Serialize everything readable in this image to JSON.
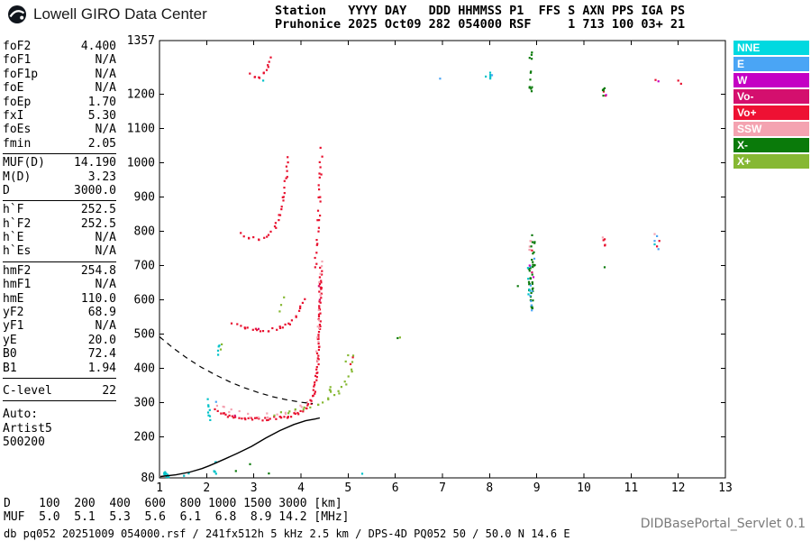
{
  "header": {
    "brand": "Lowell GIRO Data Center",
    "station_line1": "Station   YYYY DAY   DDD HHMMSS P1  FFS S AXN PPS IGA PS",
    "station_line2": "Pruhonice 2025 Oct09 282 054000 RSF     1 713 100 03+ 21"
  },
  "params": {
    "groups": [
      {
        "rows": [
          [
            "foF2",
            "4.400"
          ],
          [
            "foF1",
            "N/A"
          ],
          [
            "foF1p",
            "N/A"
          ],
          [
            "foE",
            "N/A"
          ],
          [
            "foEp",
            "1.70"
          ],
          [
            "fxI",
            "5.30"
          ],
          [
            "foEs",
            "N/A"
          ],
          [
            "fmin",
            "2.05"
          ]
        ]
      },
      {
        "rows": [
          [
            "MUF(D)",
            "14.190"
          ],
          [
            "M(D)",
            "3.23"
          ],
          [
            "D",
            "3000.0"
          ]
        ]
      },
      {
        "rows": [
          [
            "h`F",
            "252.5"
          ],
          [
            "h`F2",
            "252.5"
          ],
          [
            "h`E",
            "N/A"
          ],
          [
            "h`Es",
            "N/A"
          ]
        ]
      },
      {
        "rows": [
          [
            "hmF2",
            "254.8"
          ],
          [
            "hmF1",
            "N/A"
          ],
          [
            "hmE",
            "110.0"
          ],
          [
            "yF2",
            "68.9"
          ],
          [
            "yF1",
            "N/A"
          ],
          [
            "yE",
            "20.0"
          ],
          [
            "B0",
            "72.4"
          ],
          [
            "B1",
            "1.94"
          ]
        ]
      },
      {
        "rows": [
          [
            "C-level",
            "22"
          ]
        ],
        "space_before": true
      }
    ],
    "auto_lines": [
      "Auto:",
      "Artist5",
      "500200"
    ]
  },
  "legend": [
    {
      "label": "NNE",
      "color": "#00d9e0"
    },
    {
      "label": "E",
      "color": "#4aa5f5"
    },
    {
      "label": "W",
      "color": "#c400c4"
    },
    {
      "label": "Vo-",
      "color": "#d40f6e"
    },
    {
      "label": "Vo+",
      "color": "#ee1133"
    },
    {
      "label": "SSW",
      "color": "#f4a3b1"
    },
    {
      "label": "X-",
      "color": "#0a7a0a"
    },
    {
      "label": "X+",
      "color": "#86b833"
    }
  ],
  "chart_data": {
    "type": "scatter",
    "title": "",
    "x": {
      "label": "[MHz]",
      "min": 1,
      "max": 13,
      "ticks": [
        1,
        2,
        3,
        4,
        5,
        6,
        7,
        8,
        9,
        10,
        11,
        12,
        13
      ]
    },
    "y": {
      "label": "[km]",
      "min": 80,
      "max": 1357,
      "ticks": [
        1357,
        1200,
        1100,
        1000,
        900,
        800,
        700,
        600,
        500,
        400,
        300,
        200,
        80
      ]
    },
    "series": [
      {
        "name": "Vo+",
        "color": "#e8102e",
        "traces": [
          {
            "pts": [
              [
                2.18,
                278
              ],
              [
                2.35,
                266
              ],
              [
                2.55,
                258
              ],
              [
                2.8,
                253
              ],
              [
                3.05,
                251
              ],
              [
                3.3,
                252
              ],
              [
                3.55,
                256
              ],
              [
                3.75,
                261
              ],
              [
                3.95,
                270
              ],
              [
                4.1,
                283
              ],
              [
                4.2,
                300
              ],
              [
                4.28,
                330
              ],
              [
                4.33,
                375
              ],
              [
                4.36,
                430
              ],
              [
                4.38,
                490
              ],
              [
                4.4,
                560
              ],
              [
                4.415,
                630
              ],
              [
                4.425,
                690
              ]
            ],
            "spacing": 3,
            "jx": 1.3,
            "jy": 1.8
          },
          {
            "pts": [
              [
                2.55,
                532
              ],
              [
                2.8,
                519
              ],
              [
                3.05,
                511
              ],
              [
                3.3,
                511
              ],
              [
                3.55,
                518
              ],
              [
                3.75,
                532
              ],
              [
                3.9,
                553
              ],
              [
                4.0,
                578
              ],
              [
                4.08,
                605
              ]
            ],
            "spacing": 4.5,
            "jx": 1.2,
            "jy": 1.6
          },
          {
            "pts": [
              [
                4.3,
                690
              ],
              [
                4.34,
                760
              ],
              [
                4.37,
                830
              ],
              [
                4.39,
                900
              ],
              [
                4.41,
                970
              ],
              [
                4.43,
                1040
              ]
            ],
            "spacing": 7,
            "jx": 1.5,
            "jy": 2
          },
          {
            "pts": [
              [
                2.72,
                792
              ],
              [
                2.9,
                781
              ],
              [
                3.1,
                777
              ],
              [
                3.3,
                786
              ],
              [
                3.45,
                812
              ],
              [
                3.55,
                848
              ],
              [
                3.63,
                900
              ],
              [
                3.69,
                958
              ],
              [
                3.73,
                1015
              ]
            ],
            "spacing": 5.5,
            "jx": 1.2,
            "jy": 1.6
          },
          {
            "pts": [
              [
                2.92,
                1262
              ],
              [
                3.02,
                1251
              ],
              [
                3.12,
                1250
              ],
              [
                3.22,
                1260
              ],
              [
                3.3,
                1283
              ],
              [
                3.35,
                1308
              ]
            ],
            "spacing": 5,
            "jx": 1,
            "jy": 1.5
          }
        ],
        "clusters": [
          {
            "f": 10.44,
            "h0": 755,
            "h1": 780,
            "n": 4,
            "jx": 0.04
          }
        ],
        "points": [
          [
            10.42,
            1208
          ],
          [
            10.46,
            1196
          ],
          [
            11.52,
            1242
          ],
          [
            12.0,
            1240
          ],
          [
            12.06,
            1231
          ],
          [
            11.55,
            756
          ],
          [
            11.6,
            772
          ],
          [
            8.9,
            744
          ],
          [
            5.05,
            412
          ],
          [
            5.1,
            432
          ]
        ]
      },
      {
        "name": "SSW",
        "color": "#f4a3b1",
        "traces": [
          {
            "pts": [
              [
                2.2,
                292
              ],
              [
                2.5,
                274
              ],
              [
                2.9,
                263
              ],
              [
                3.3,
                261
              ],
              [
                3.7,
                269
              ],
              [
                4.0,
                284
              ],
              [
                4.15,
                305
              ]
            ],
            "spacing": 9,
            "jx": 1.5,
            "jy": 3
          },
          {
            "pts": [
              [
                4.33,
                420
              ],
              [
                4.37,
                520
              ],
              [
                4.4,
                620
              ],
              [
                4.43,
                700
              ]
            ],
            "spacing": 9,
            "jx": 1.8,
            "jy": 3
          }
        ],
        "clusters": [
          {
            "f": 8.86,
            "h0": 742,
            "h1": 778,
            "n": 5,
            "jx": 0.03
          }
        ],
        "points": [
          [
            10.4,
            782
          ],
          [
            11.5,
            792
          ],
          [
            2.35,
            288
          ],
          [
            4.45,
            712
          ]
        ]
      },
      {
        "name": "Vo-",
        "color": "#d40f6e",
        "points": [
          [
            4.38,
            640
          ],
          [
            4.4,
            600
          ],
          [
            8.9,
            680
          ],
          [
            2.6,
            262
          ],
          [
            3.1,
            515
          ]
        ]
      },
      {
        "name": "X+",
        "color": "#86b833",
        "traces": [
          {
            "pts": [
              [
                3.45,
                266
              ],
              [
                3.75,
                272
              ],
              [
                4.05,
                281
              ],
              [
                4.35,
                294
              ],
              [
                4.6,
                308
              ],
              [
                4.8,
                328
              ],
              [
                4.95,
                356
              ],
              [
                5.06,
                395
              ],
              [
                5.13,
                435
              ]
            ],
            "spacing": 7,
            "jx": 1.2,
            "jy": 2
          }
        ],
        "clusters": [
          {
            "f": 4.63,
            "h0": 330,
            "h1": 362,
            "n": 4,
            "jx": 0.05
          }
        ],
        "points": [
          [
            3.58,
            585
          ],
          [
            3.64,
            607
          ],
          [
            3.55,
            566
          ],
          [
            4.95,
            420
          ],
          [
            5.0,
            438
          ],
          [
            6.1,
            490
          ],
          [
            2.3,
            455
          ],
          [
            2.32,
            470
          ]
        ]
      },
      {
        "name": "X-",
        "color": "#0a7a0a",
        "clusters": [
          {
            "f": 8.88,
            "h0": 575,
            "h1": 700,
            "n": 26,
            "jx": 0.05
          },
          {
            "f": 8.92,
            "h0": 700,
            "h1": 792,
            "n": 12,
            "jx": 0.04
          },
          {
            "f": 8.87,
            "h0": 1205,
            "h1": 1332,
            "n": 12,
            "jx": 0.03
          },
          {
            "f": 10.42,
            "h0": 1192,
            "h1": 1228,
            "n": 5,
            "jx": 0.02
          }
        ],
        "points": [
          [
            2.92,
            120
          ],
          [
            3.32,
            93
          ],
          [
            2.62,
            100
          ],
          [
            6.05,
            488
          ],
          [
            8.6,
            640
          ],
          [
            10.44,
            695
          ]
        ]
      },
      {
        "name": "NNE",
        "color": "#00c2c9",
        "clusters": [
          {
            "f": 2.05,
            "h0": 248,
            "h1": 312,
            "n": 8,
            "jx": 0.03
          },
          {
            "f": 2.18,
            "h0": 85,
            "h1": 132,
            "n": 6,
            "jx": 0.03
          },
          {
            "f": 1.15,
            "h0": 82,
            "h1": 100,
            "n": 8,
            "jx": 0.07
          },
          {
            "f": 8.84,
            "h0": 615,
            "h1": 700,
            "n": 6,
            "jx": 0.03
          },
          {
            "f": 8.02,
            "h0": 1243,
            "h1": 1268,
            "n": 4,
            "jx": 0.02
          },
          {
            "f": 2.26,
            "h0": 438,
            "h1": 472,
            "n": 4,
            "jx": 0.03
          }
        ],
        "points": [
          [
            1.52,
            86
          ],
          [
            1.62,
            93
          ],
          [
            7.92,
            1252
          ],
          [
            11.5,
            762
          ],
          [
            5.3,
            92
          ],
          [
            3.2,
            1240
          ]
        ]
      },
      {
        "name": "E",
        "color": "#4aa5f5",
        "clusters": [
          {
            "f": 8.9,
            "h0": 560,
            "h1": 640,
            "n": 5,
            "jx": 0.05
          }
        ],
        "points": [
          [
            8.87,
            642
          ],
          [
            11.55,
            786
          ],
          [
            11.5,
            772
          ],
          [
            6.95,
            1246
          ],
          [
            8.05,
            1256
          ],
          [
            2.2,
            302
          ],
          [
            8.95,
            720
          ],
          [
            11.58,
            748
          ]
        ]
      },
      {
        "name": "W",
        "color": "#c400c4",
        "points": [
          [
            8.93,
            666
          ],
          [
            10.47,
            1198
          ],
          [
            11.58,
            1238
          ],
          [
            8.85,
            700
          ]
        ]
      }
    ],
    "overlays": [
      {
        "name": "electron-density-profile",
        "style": "solid",
        "pts": [
          [
            1.02,
            84
          ],
          [
            1.35,
            89
          ],
          [
            1.65,
            97
          ],
          [
            1.9,
            107
          ],
          [
            2.05,
            115
          ],
          [
            2.2,
            124
          ],
          [
            2.4,
            136
          ],
          [
            2.65,
            152
          ],
          [
            2.95,
            172
          ],
          [
            3.25,
            196
          ],
          [
            3.55,
            218
          ],
          [
            3.85,
            236
          ],
          [
            4.1,
            247
          ],
          [
            4.3,
            252
          ],
          [
            4.4,
            255
          ]
        ]
      },
      {
        "name": "muf-transmission-curve",
        "style": "dashed",
        "pts": [
          [
            1.0,
            492
          ],
          [
            1.3,
            458
          ],
          [
            1.6,
            428
          ],
          [
            1.9,
            402
          ],
          [
            2.2,
            380
          ],
          [
            2.5,
            360
          ],
          [
            2.8,
            343
          ],
          [
            3.1,
            329
          ],
          [
            3.4,
            317
          ],
          [
            3.7,
            308
          ],
          [
            4.0,
            301
          ],
          [
            4.25,
            297
          ]
        ]
      }
    ]
  },
  "footer": {
    "scale_rows": [
      {
        "label": "D",
        "values": [
          "100",
          "200",
          "400",
          "600",
          "800",
          "1000",
          "1500",
          "3000"
        ],
        "unit": "[km]"
      },
      {
        "label": "MUF",
        "values": [
          "5.0",
          "5.1",
          "5.3",
          "5.6",
          "6.1",
          "6.8",
          "8.9",
          "14.2"
        ],
        "unit": "[MHz]"
      }
    ],
    "status": "db pq052 20251009 054000.rsf / 241fx512h 5 kHz 2.5 km / DPS-4D PQ052 50 / 50.0 N 14.6 E",
    "servlet": "DIDBasePortal_Servlet 0.1"
  }
}
